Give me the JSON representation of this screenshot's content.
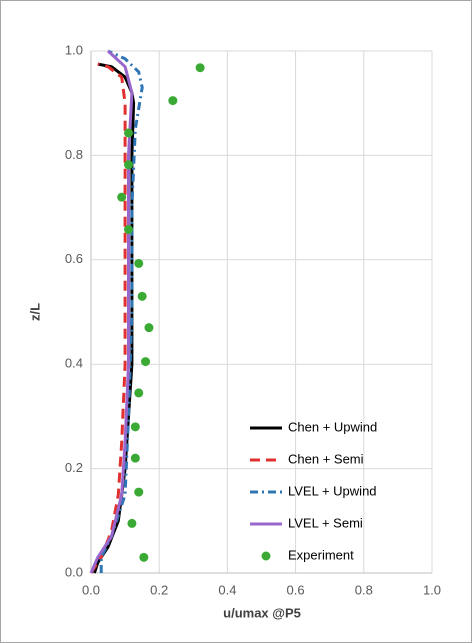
{
  "chart_data": {
    "type": "line",
    "xlabel": "u/umax @P5",
    "ylabel": "z/L",
    "xlim": [
      0,
      1
    ],
    "ylim": [
      0,
      1
    ],
    "xticks": [
      {
        "value": 0,
        "label": "0.0"
      },
      0.2,
      0.4,
      0.6,
      0.8,
      {
        "value": 1,
        "label": "1.0"
      }
    ],
    "yticks": [
      {
        "value": 0,
        "label": "0.0"
      },
      0.2,
      0.4,
      0.6,
      0.8,
      {
        "value": 1,
        "label": "1.0"
      }
    ],
    "grid": true,
    "legend": "lower right",
    "series": [
      {
        "name": "Chen + Upwind",
        "color": "#000000",
        "style": "solid",
        "x": [
          0.01,
          0.02,
          0.05,
          0.08,
          0.1,
          0.11,
          0.12,
          0.12,
          0.12,
          0.12,
          0.12,
          0.125,
          0.12,
          0.1,
          0.06,
          0.02
        ],
        "y": [
          0.0,
          0.02,
          0.05,
          0.1,
          0.2,
          0.3,
          0.4,
          0.5,
          0.6,
          0.7,
          0.8,
          0.9,
          0.92,
          0.95,
          0.97,
          0.975
        ]
      },
      {
        "name": "Chen + Semi",
        "color": "#e03030",
        "style": "dashed",
        "x": [
          0.0,
          0.03,
          0.06,
          0.08,
          0.09,
          0.1,
          0.1,
          0.1,
          0.1,
          0.09,
          0.05,
          0.02
        ],
        "y": [
          0.0,
          0.03,
          0.08,
          0.15,
          0.25,
          0.4,
          0.6,
          0.8,
          0.9,
          0.95,
          0.97,
          0.975
        ]
      },
      {
        "name": "LVEL + Upwind",
        "color": "#2e75b6",
        "style": "dashdot",
        "x": [
          0.03,
          0.03,
          0.06,
          0.1,
          0.11,
          0.12,
          0.12,
          0.13,
          0.15,
          0.14,
          0.1,
          0.05
        ],
        "y": [
          0.0,
          0.03,
          0.07,
          0.15,
          0.3,
          0.5,
          0.7,
          0.85,
          0.93,
          0.96,
          0.985,
          1.0
        ]
      },
      {
        "name": "LVEL + Semi",
        "color": "#9966cc",
        "style": "solid",
        "x": [
          0.0,
          0.02,
          0.06,
          0.09,
          0.1,
          0.11,
          0.11,
          0.11,
          0.12,
          0.1,
          0.05
        ],
        "y": [
          0.0,
          0.03,
          0.07,
          0.15,
          0.25,
          0.4,
          0.6,
          0.8,
          0.92,
          0.97,
          1.0
        ]
      },
      {
        "name": "Experiment",
        "color": "#3aaa35",
        "style": "marker",
        "x": [
          0.155,
          0.12,
          0.14,
          0.13,
          0.13,
          0.14,
          0.16,
          0.17,
          0.15,
          0.14,
          0.11,
          0.09,
          0.11,
          0.11,
          0.24,
          0.32
        ],
        "y": [
          0.03,
          0.095,
          0.155,
          0.22,
          0.28,
          0.345,
          0.405,
          0.47,
          0.53,
          0.593,
          0.658,
          0.72,
          0.782,
          0.843,
          0.905,
          0.968
        ]
      }
    ]
  }
}
